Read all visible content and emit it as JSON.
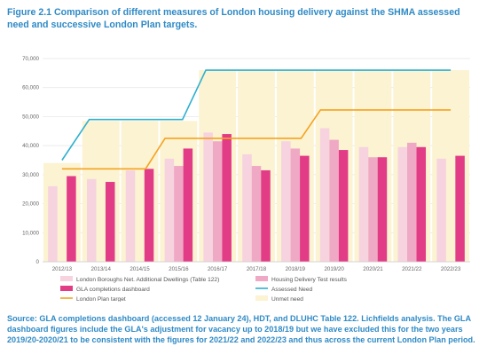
{
  "caption": "Figure 2.1 Comparison of different measures of London housing delivery against the SHMA assessed need and successive London Plan targets.",
  "source": "Source: GLA completions dashboard (accessed 12 January 24), HDT, and DLUHC Table 122. Lichfields analysis. The GLA dashboard figures include the GLA's adjustment for vacancy up to 2018/19 but we have excluded this for the two years 2019/20-2020/21 to be consistent with the figures for 2021/22 and 2022/23 and thus across the current London Plan period.",
  "chart_data": {
    "type": "bar",
    "title": "Figure 2.1 Comparison of different measures of London housing delivery against the SHMA assessed need and successive London Plan targets.",
    "categories": [
      "2012/13",
      "2013/14",
      "2014/15",
      "2015/16",
      "2016/17",
      "2017/18",
      "2018/19",
      "2019/20",
      "2020/21",
      "2021/22",
      "2022/23"
    ],
    "ylim": [
      0,
      70000
    ],
    "yticks": [
      0,
      10000,
      20000,
      30000,
      40000,
      50000,
      60000,
      70000
    ],
    "ytick_labels": [
      "0",
      "10,000",
      "20,000",
      "30,000",
      "40,000",
      "50,000",
      "60,000",
      "70,000"
    ],
    "grid": true,
    "legend_position": "bottom",
    "colors": {
      "unmet_need": "#fbf3d2",
      "net_dwellings": "#f6d3de",
      "hdt": "#f0a9c4",
      "gla": "#e23c86",
      "assessed_need": "#2fb0d0",
      "london_plan": "#f5a320"
    },
    "series": [
      {
        "name": "Unmet need",
        "kind": "area",
        "values": [
          34000,
          48500,
          48500,
          48500,
          66000,
          66000,
          66000,
          66000,
          66000,
          66000,
          66000
        ]
      },
      {
        "name": "London Boroughs Net. Additional Dwellings (Table 122)",
        "kind": "bar",
        "values": [
          26000,
          28500,
          31500,
          35500,
          44500,
          37000,
          41500,
          46000,
          39500,
          39500,
          35500
        ]
      },
      {
        "name": "Housing Delivery Test results",
        "kind": "bar",
        "values": [
          null,
          null,
          null,
          33000,
          41500,
          33000,
          39000,
          42000,
          36000,
          41000,
          null
        ]
      },
      {
        "name": "GLA completions dashboard",
        "kind": "bar",
        "values": [
          29500,
          27500,
          32000,
          39000,
          44000,
          31500,
          36500,
          38500,
          36000,
          39500,
          36500
        ]
      },
      {
        "name": "Assessed Need",
        "kind": "line",
        "values": [
          35000,
          49000,
          49000,
          49000,
          66000,
          66000,
          66000,
          66000,
          66000,
          66000,
          66000
        ]
      },
      {
        "name": "London Plan target",
        "kind": "line",
        "values": [
          32000,
          32000,
          32000,
          42500,
          42500,
          42500,
          42500,
          52300,
          52300,
          52300,
          52300
        ]
      }
    ]
  }
}
